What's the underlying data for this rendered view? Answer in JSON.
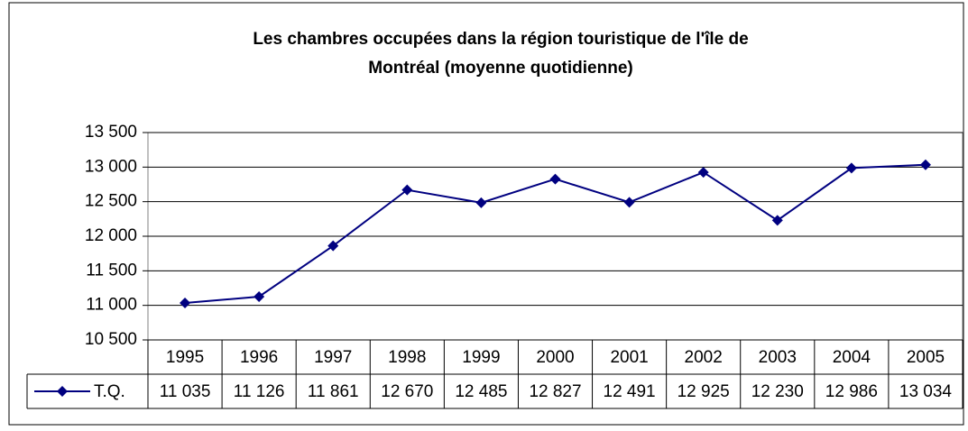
{
  "chart_data": {
    "type": "line",
    "title": [
      "Les chambres occupées dans la région touristique de l'île de",
      "Montréal (moyenne quotidienne)"
    ],
    "categories": [
      "1995",
      "1996",
      "1997",
      "1998",
      "1999",
      "2000",
      "2001",
      "2002",
      "2003",
      "2004",
      "2005"
    ],
    "series": [
      {
        "name": "T.Q.",
        "color": "#000080",
        "values": [
          11035,
          11126,
          11861,
          12670,
          12485,
          12827,
          12491,
          12925,
          12230,
          12986,
          13034
        ],
        "value_labels": [
          "11 035",
          "11 126",
          "11 861",
          "12 670",
          "12 485",
          "12 827",
          "12 491",
          "12 925",
          "12 230",
          "12 986",
          "13 034"
        ]
      }
    ],
    "ylim": [
      10500,
      13500
    ],
    "yticks": [
      {
        "value": 10500,
        "label": "10 500"
      },
      {
        "value": 11000,
        "label": "11 000"
      },
      {
        "value": 11500,
        "label": "11 500"
      },
      {
        "value": 12000,
        "label": "12 000"
      },
      {
        "value": 12500,
        "label": "12 500"
      },
      {
        "value": 13000,
        "label": "13 000"
      },
      {
        "value": 13500,
        "label": "13 500"
      }
    ],
    "grid": true,
    "data_table": true
  }
}
